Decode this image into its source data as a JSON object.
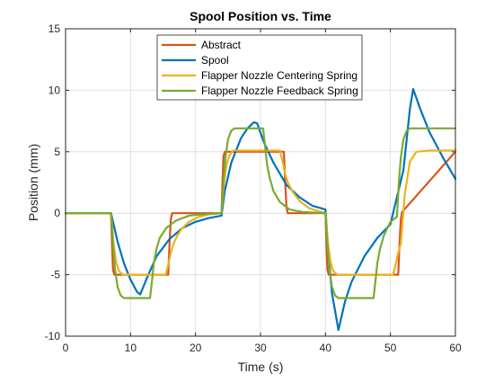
{
  "chart_data": {
    "type": "line",
    "title": "Spool Position vs. Time",
    "xlabel": "Time (s)",
    "ylabel": "Position (mm)",
    "xlim": [
      0,
      60
    ],
    "ylim": [
      -10,
      15
    ],
    "xticks": [
      0,
      10,
      20,
      30,
      40,
      50,
      60
    ],
    "yticks": [
      -10,
      -5,
      0,
      5,
      10,
      15
    ],
    "xtick_labels": [
      "0",
      "10",
      "20",
      "30",
      "40",
      "50",
      "60"
    ],
    "ytick_labels": [
      "-10",
      "-5",
      "0",
      "5",
      "10",
      "15"
    ],
    "grid": true,
    "legend_position": "top-center",
    "series": [
      {
        "name": "Abstract",
        "color": "#D95319",
        "x": [
          0,
          7,
          7.15,
          7.3,
          7.5,
          15.8,
          16.0,
          16.2,
          16.4,
          24,
          24.15,
          24.3,
          24.5,
          33.6,
          33.8,
          34.0,
          34.2,
          40,
          40.15,
          40.3,
          40.5,
          51.2,
          51.4,
          51.6,
          51.8,
          60
        ],
        "y": [
          0,
          0,
          -2.5,
          -4.6,
          -5,
          -5,
          -2.5,
          -0.5,
          0,
          0,
          2.5,
          4.6,
          5,
          5,
          2.5,
          0.5,
          0,
          0,
          -2.5,
          -4.6,
          -5,
          -5,
          -2.5,
          -0.5,
          0.1,
          5
        ]
      },
      {
        "name": "Spool",
        "color": "#0072BD",
        "x": [
          0,
          7,
          8,
          9,
          10,
          11,
          11.5,
          12.5,
          14,
          16,
          18,
          20,
          22,
          24,
          24.5,
          25.5,
          27,
          28,
          29,
          29.5,
          30.5,
          32,
          34,
          36,
          38,
          40,
          40.5,
          41,
          42,
          43,
          44,
          46,
          48,
          50,
          52,
          53,
          53.5,
          54.5,
          56,
          58,
          60
        ],
        "y": [
          0,
          0,
          -2.3,
          -4.1,
          -5.4,
          -6.4,
          -6.6,
          -5.3,
          -3.5,
          -2.1,
          -1.2,
          -0.7,
          -0.4,
          -0.2,
          1.8,
          4.1,
          6.1,
          6.9,
          7.4,
          7.3,
          5.8,
          4.1,
          2.3,
          1.3,
          0.6,
          0.3,
          -3.5,
          -6.5,
          -9.5,
          -7.2,
          -5.6,
          -3.5,
          -2.0,
          -0.9,
          3.5,
          8.5,
          10.1,
          8.6,
          6.6,
          4.6,
          2.8
        ]
      },
      {
        "name": "Flapper Nozzle Centering Spring",
        "color": "#EDB120",
        "x": [
          0,
          7,
          7.4,
          7.8,
          8.2,
          8.8,
          15.4,
          15.8,
          16.2,
          16.6,
          17.2,
          18,
          19,
          20.5,
          22,
          24,
          24.4,
          24.8,
          25.2,
          25.8,
          33.0,
          33.4,
          33.8,
          34.2,
          35,
          36,
          37.5,
          40,
          40.4,
          40.8,
          41.2,
          41.8,
          50.4,
          50.8,
          51.2,
          51.6,
          52.2,
          53,
          54,
          56,
          58,
          60
        ],
        "y": [
          0,
          0,
          -2.5,
          -4.0,
          -4.7,
          -5.0,
          -5.0,
          -4.2,
          -3.2,
          -2.5,
          -1.8,
          -1.2,
          -0.7,
          -0.3,
          -0.1,
          0,
          2.5,
          4.0,
          4.7,
          5.1,
          5.1,
          4.2,
          3.2,
          2.5,
          1.7,
          1.0,
          0.4,
          0,
          -2.5,
          -4.0,
          -4.7,
          -5.0,
          -5.0,
          -4.2,
          -3.2,
          -2.5,
          1.5,
          4.2,
          5.0,
          5.1,
          5.1,
          5.1
        ]
      },
      {
        "name": "Flapper Nozzle Feedback Spring",
        "color": "#77AC30",
        "x": [
          0,
          7,
          7.3,
          7.6,
          8.0,
          8.5,
          9.0,
          13.0,
          13.3,
          13.6,
          14.0,
          14.5,
          15.5,
          17,
          19,
          21,
          24,
          24.3,
          24.6,
          25.0,
          25.5,
          26.0,
          30.4,
          30.7,
          31.0,
          31.4,
          32,
          33,
          34.5,
          36.5,
          40,
          40.3,
          40.6,
          41.0,
          41.5,
          42.0,
          47.4,
          47.7,
          48.0,
          48.4,
          49,
          50,
          51,
          51.3,
          51.6,
          52.0,
          52.5,
          53,
          60
        ],
        "y": [
          0,
          0,
          -2.5,
          -4.5,
          -6.0,
          -6.7,
          -6.9,
          -6.9,
          -5.5,
          -4.0,
          -2.9,
          -2.0,
          -1.2,
          -0.6,
          -0.2,
          -0.1,
          0,
          2.5,
          4.5,
          6.0,
          6.7,
          6.9,
          6.9,
          5.5,
          4.0,
          2.9,
          1.8,
          0.9,
          0.3,
          0.1,
          0,
          -2.5,
          -4.5,
          -6.0,
          -6.7,
          -6.9,
          -6.9,
          -5.5,
          -4.0,
          -2.9,
          -1.8,
          -0.7,
          -0.3,
          2.5,
          4.5,
          6.0,
          6.7,
          6.9,
          6.9
        ]
      }
    ]
  }
}
